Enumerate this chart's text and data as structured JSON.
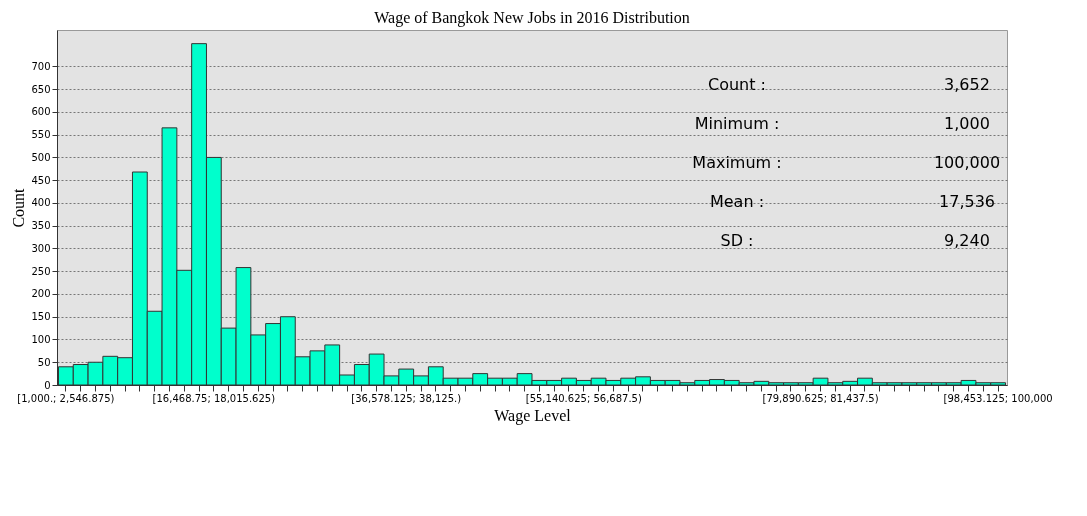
{
  "chart_data": {
    "type": "bar",
    "title": "Wage of Bangkok New Jobs in 2016 Distribution",
    "xlabel": "Wage Level",
    "ylabel": "Count",
    "categories": [
      "[1,000.; 2,546.875)",
      null,
      null,
      null,
      null,
      null,
      null,
      null,
      null,
      null,
      "[16,468.75; 18,015.625)",
      null,
      null,
      null,
      null,
      null,
      null,
      null,
      null,
      null,
      null,
      null,
      null,
      "[36,578.125; 38,125.)",
      null,
      null,
      null,
      null,
      null,
      null,
      null,
      null,
      null,
      null,
      null,
      "[55,140.625; 56,687.5)",
      null,
      null,
      null,
      null,
      null,
      null,
      null,
      null,
      null,
      null,
      null,
      null,
      null,
      null,
      null,
      "[79,890.625; 81,437.5)",
      null,
      null,
      null,
      null,
      null,
      null,
      null,
      null,
      null,
      null,
      null,
      "[98,453.125; 100,000"
    ],
    "series": [
      {
        "color": "#00ffcc",
        "values": [
          40,
          45,
          50,
          63,
          60,
          468,
          162,
          565,
          252,
          750,
          500,
          125,
          258,
          110,
          135,
          150,
          62,
          75,
          88,
          22,
          45,
          68,
          20,
          35,
          20,
          40,
          15,
          15,
          25,
          15,
          15,
          25,
          10,
          10,
          15,
          10,
          15,
          10,
          15,
          18,
          10,
          10,
          5,
          10,
          12,
          10,
          5,
          8,
          5,
          5,
          5,
          15,
          5,
          8,
          15,
          5,
          5,
          5,
          5,
          5,
          5,
          10,
          5,
          5
        ]
      }
    ],
    "ylim": [
      0,
      780
    ],
    "yticks": [
      0,
      50,
      100,
      150,
      200,
      250,
      300,
      350,
      400,
      450,
      500,
      550,
      600,
      650,
      700
    ],
    "grid": "y",
    "annotations": [
      "Count :",
      "3,652",
      "Minimum :",
      "1,000",
      "Maximum :",
      "100,000",
      "Mean :",
      "17,536",
      "SD :",
      "9,240"
    ]
  }
}
